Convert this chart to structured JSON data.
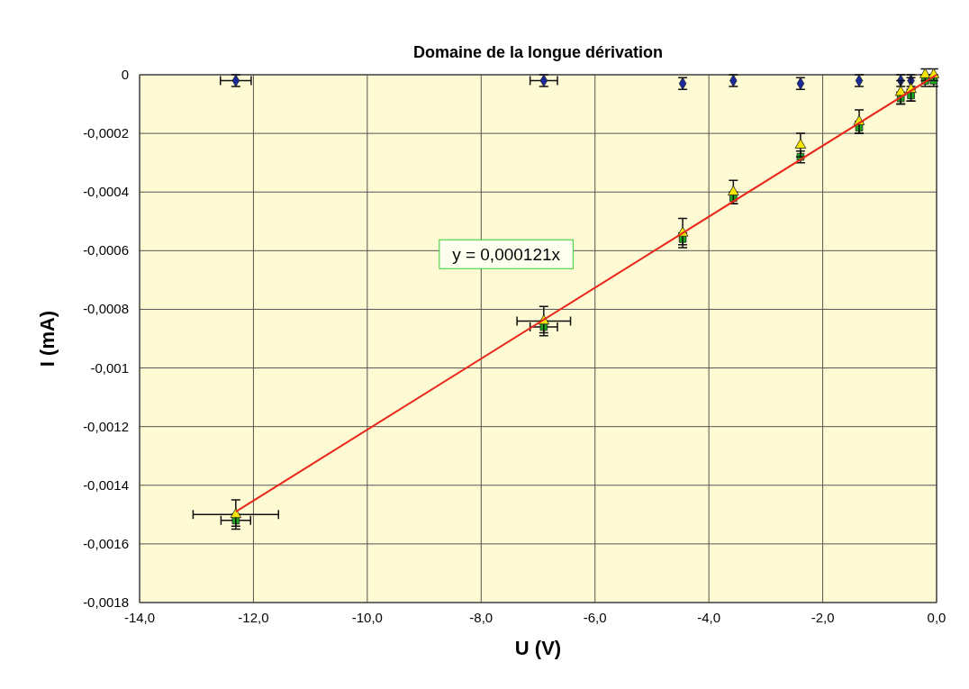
{
  "chart_data": {
    "type": "scatter",
    "title": "Domaine de la longue dérivation",
    "xlabel": "U  (V)",
    "ylabel": "I  (mA)",
    "xlim": [
      -14,
      0
    ],
    "ylim": [
      -0.0018,
      0
    ],
    "xticks": [
      {
        "value": -14,
        "label": "-14,0"
      },
      {
        "value": -12,
        "label": "-12,0"
      },
      {
        "value": -10,
        "label": "-10,0"
      },
      {
        "value": -8,
        "label": "-8,0"
      },
      {
        "value": -6,
        "label": "-6,0"
      },
      {
        "value": -4,
        "label": "-4,0"
      },
      {
        "value": -2,
        "label": "-2,0"
      },
      {
        "value": 0,
        "label": "0,0"
      }
    ],
    "yticks": [
      0,
      {
        "value": -0.0002,
        "label": "-0,0002"
      },
      {
        "value": -0.0004,
        "label": "-0,0004"
      },
      {
        "value": -0.0006,
        "label": "-0,0006"
      },
      {
        "value": -0.0008,
        "label": "-0,0008"
      },
      {
        "value": -0.001,
        "label": "-0,001"
      },
      {
        "value": -0.0012,
        "label": "-0,0012"
      },
      {
        "value": -0.0014,
        "label": "-0,0014"
      },
      {
        "value": -0.0016,
        "label": "-0,0016"
      },
      {
        "value": -0.0018,
        "label": "-0,0018"
      }
    ],
    "grid": true,
    "annotations": [
      "y = 0,000121x"
    ],
    "series": [
      {
        "marker": "diamond",
        "color": "#1a2a9c",
        "x": [
          -12.31,
          -6.9,
          -4.46,
          -3.57,
          -2.39,
          -1.36,
          -0.63,
          -0.45
        ],
        "values": [
          -2e-05,
          -2e-05,
          -3e-05,
          -2e-05,
          -3e-05,
          -2e-05,
          -2e-05,
          -2e-05
        ],
        "errors": [
          2e-05,
          2e-05,
          2e-05,
          2e-05,
          2e-05,
          2e-05,
          2e-05,
          2e-05
        ],
        "xerrors": [
          0.27,
          0.24,
          null,
          null,
          null,
          null,
          null,
          null
        ]
      },
      {
        "marker": "square",
        "color": "#1ea81e",
        "x": [
          -12.31,
          -6.9,
          -4.46,
          -3.57,
          -2.39,
          -1.36,
          -0.63,
          -0.45,
          -0.2,
          -0.05
        ],
        "values": [
          -0.00152,
          -0.00086,
          -0.00056,
          -0.00042,
          -0.00028,
          -0.00018,
          -8e-05,
          -7e-05,
          -2e-05,
          -2e-05
        ],
        "errors": [
          2e-05,
          2e-05,
          2e-05,
          2e-05,
          2e-05,
          2e-05,
          2e-05,
          2e-05,
          2e-05,
          2e-05
        ],
        "xerrors": [
          0.26,
          0.24,
          null,
          null,
          null,
          null,
          null,
          null,
          null,
          null
        ]
      },
      {
        "marker": "triangle",
        "color": "#f5e600",
        "x": [
          -12.31,
          -6.9,
          -4.46,
          -3.57,
          -2.39,
          -1.36,
          -0.63,
          -0.45,
          -0.2,
          -0.05
        ],
        "values": [
          -0.0015,
          -0.00084,
          -0.00054,
          -0.0004,
          -0.00024,
          -0.00016,
          -6e-05,
          -5e-05,
          0,
          0
        ],
        "errors": [
          5e-05,
          5e-05,
          5e-05,
          4e-05,
          4e-05,
          4e-05,
          4e-05,
          4e-05,
          2e-05,
          2e-05
        ],
        "xerrors": [
          0.75,
          0.47,
          null,
          null,
          null,
          null,
          null,
          null,
          null,
          null
        ]
      },
      {
        "type": "line",
        "color": "#e8261a",
        "x": [
          -12.31,
          0
        ],
        "values": [
          -0.00149,
          0
        ]
      }
    ]
  }
}
